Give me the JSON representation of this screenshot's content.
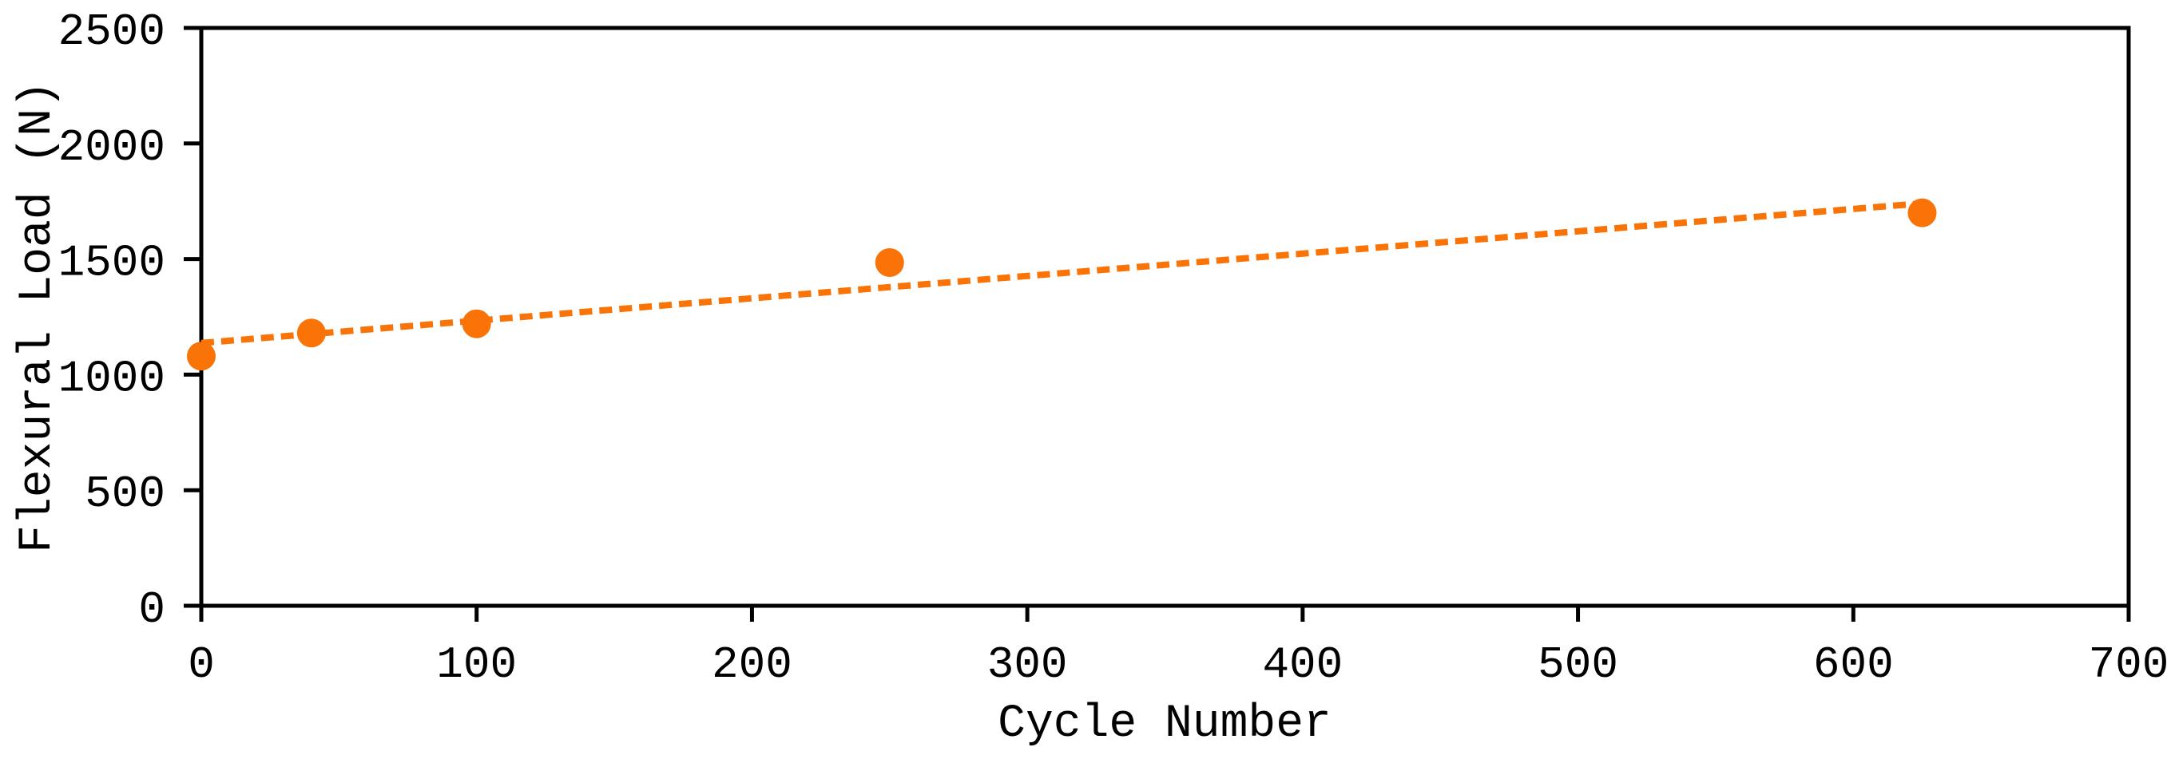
{
  "chart_data": {
    "type": "scatter",
    "title": "",
    "xlabel": "Cycle Number",
    "ylabel": "Flexural Load (N)",
    "xlim": [
      0,
      700
    ],
    "ylim": [
      0,
      2500
    ],
    "x_ticks": [
      0,
      100,
      200,
      300,
      400,
      500,
      600,
      700
    ],
    "y_ticks": [
      0,
      500,
      1000,
      1500,
      2000,
      2500
    ],
    "grid": false,
    "legend_position": "none",
    "plot_background": "#ffffff",
    "axis_color": "#000000",
    "series": [
      {
        "name": "Flexural Load",
        "marker": "circle",
        "color": "#F97306",
        "points": [
          {
            "x": 0,
            "y": 1080
          },
          {
            "x": 40,
            "y": 1180
          },
          {
            "x": 100,
            "y": 1220
          },
          {
            "x": 250,
            "y": 1485
          },
          {
            "x": 625,
            "y": 1700
          }
        ]
      }
    ],
    "trendline": {
      "style": "dashed",
      "color": "#F97306",
      "start": {
        "x": 0,
        "y": 1137
      },
      "end": {
        "x": 625,
        "y": 1741
      }
    }
  }
}
